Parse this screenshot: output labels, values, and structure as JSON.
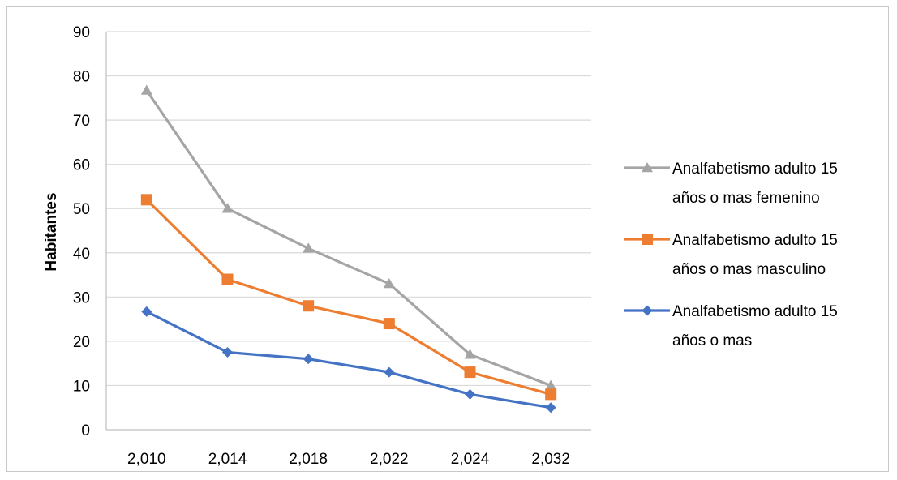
{
  "chart_data": {
    "type": "line",
    "title": "",
    "xlabel": "",
    "ylabel": "Habitantes",
    "categories": [
      "2,010",
      "2,014",
      "2,018",
      "2,022",
      "2,024",
      "2,032"
    ],
    "ylim": [
      0,
      90
    ],
    "y_ticks": [
      0,
      10,
      20,
      30,
      40,
      50,
      60,
      70,
      80,
      90
    ],
    "grid": true,
    "legend_position": "right",
    "series": [
      {
        "name": "Analfabetismo adulto 15 años o mas femenino",
        "legend_lines": [
          "Analfabetismo adulto 15",
          "años o mas femenino"
        ],
        "marker": "triangle",
        "color": "#a5a5a5",
        "values": [
          76.7,
          50,
          41,
          33,
          17,
          10
        ]
      },
      {
        "name": "Analfabetismo adulto 15 años o mas masculino",
        "legend_lines": [
          "Analfabetismo adulto 15",
          "años o mas masculino"
        ],
        "marker": "square",
        "color": "#ed7d31",
        "values": [
          52,
          34,
          28,
          24,
          13,
          8
        ]
      },
      {
        "name": "Analfabetismo adulto 15 años o mas",
        "legend_lines": [
          "Analfabetismo adulto 15",
          "años o mas"
        ],
        "marker": "diamond",
        "color": "#4472c4",
        "values": [
          26.7,
          17.5,
          16,
          13,
          8,
          5
        ]
      }
    ]
  }
}
